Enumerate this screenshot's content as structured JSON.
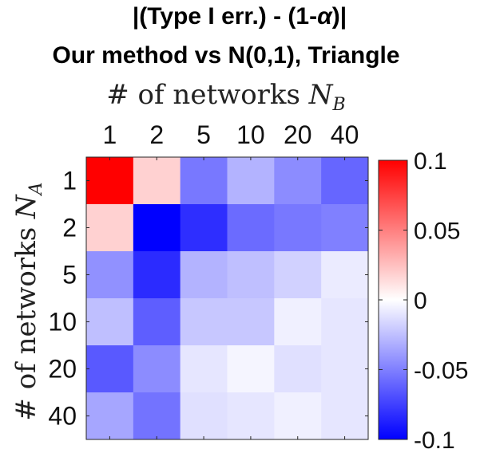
{
  "chart_data": {
    "type": "heatmap",
    "title_line1": "|(Type I err.) - (1-",
    "title_alpha": "α",
    "title_line1_end": ")|",
    "title_line2": "Our method vs N(0,1), Triangle",
    "xlabel_prefix": "# of networks ",
    "xlabel_var": "N",
    "xlabel_sub": "B",
    "ylabel_prefix": "# of networks ",
    "ylabel_var": "N",
    "ylabel_sub": "A",
    "x_categories": [
      "1",
      "2",
      "5",
      "10",
      "20",
      "40"
    ],
    "y_categories": [
      "1",
      "2",
      "5",
      "10",
      "20",
      "40"
    ],
    "values": [
      [
        0.1,
        0.018,
        -0.053,
        -0.03,
        -0.045,
        -0.06
      ],
      [
        0.018,
        -0.1,
        -0.082,
        -0.058,
        -0.053,
        -0.05
      ],
      [
        -0.043,
        -0.083,
        -0.03,
        -0.025,
        -0.018,
        -0.008
      ],
      [
        -0.025,
        -0.063,
        -0.022,
        -0.022,
        -0.006,
        -0.01
      ],
      [
        -0.065,
        -0.045,
        -0.01,
        -0.004,
        -0.012,
        -0.01
      ],
      [
        -0.035,
        -0.055,
        -0.012,
        -0.01,
        -0.006,
        -0.01
      ]
    ],
    "colorbar": {
      "min": -0.1,
      "max": 0.1,
      "ticks": [
        0.1,
        0.05,
        0,
        -0.05,
        -0.1
      ],
      "tick_labels": [
        "0.1",
        "0.05",
        "0",
        "-0.05",
        "-0.1"
      ],
      "colormap": "blue-white-red",
      "low_color": "#0000ff",
      "mid_color": "#ffffff",
      "high_color": "#ff0000"
    },
    "x_axis_position": "top"
  }
}
